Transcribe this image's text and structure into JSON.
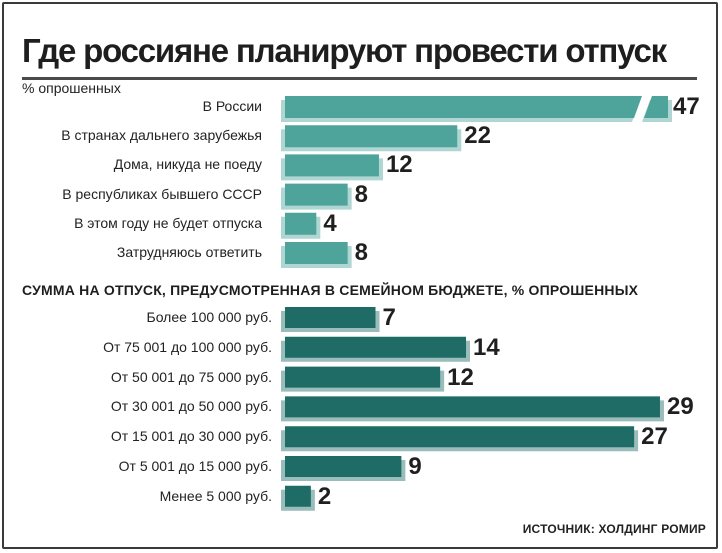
{
  "chart_data": [
    {
      "type": "bar",
      "orientation": "horizontal",
      "title": "Где россияне планируют провести отпуск",
      "subtitle": "% опрошенных",
      "categories": [
        "В России",
        "В странах дальнего зарубежья",
        "Дома, никуда не поеду",
        "В республиках бывшего СССР",
        "В этом году не будет отпуска",
        "Затрудняюсь ответить"
      ],
      "values": [
        47,
        22,
        12,
        8,
        4,
        8
      ],
      "color": "#4ea39a",
      "axis_break_on_first_bar": true
    },
    {
      "type": "bar",
      "orientation": "horizontal",
      "title": "СУММА НА ОТПУСК, ПРЕДУСМОТРЕННАЯ В СЕМЕЙНОМ БЮДЖЕТЕ, % ОПРОШЕННЫХ",
      "categories": [
        "Более 100 000 руб.",
        "От 75 001 до 100 000 руб.",
        "От 50 001 до 75 000 руб.",
        "От 30 001 до 50 000 руб.",
        "От 15 001 до 30 000 руб.",
        "От 5 001 до 15 000 руб.",
        "Менее 5 000 руб."
      ],
      "values": [
        7,
        14,
        12,
        29,
        27,
        9,
        2
      ],
      "color": "#1f6b65"
    }
  ],
  "source": "ИСТОЧНИК: ХОЛДИНГ РОМИР"
}
